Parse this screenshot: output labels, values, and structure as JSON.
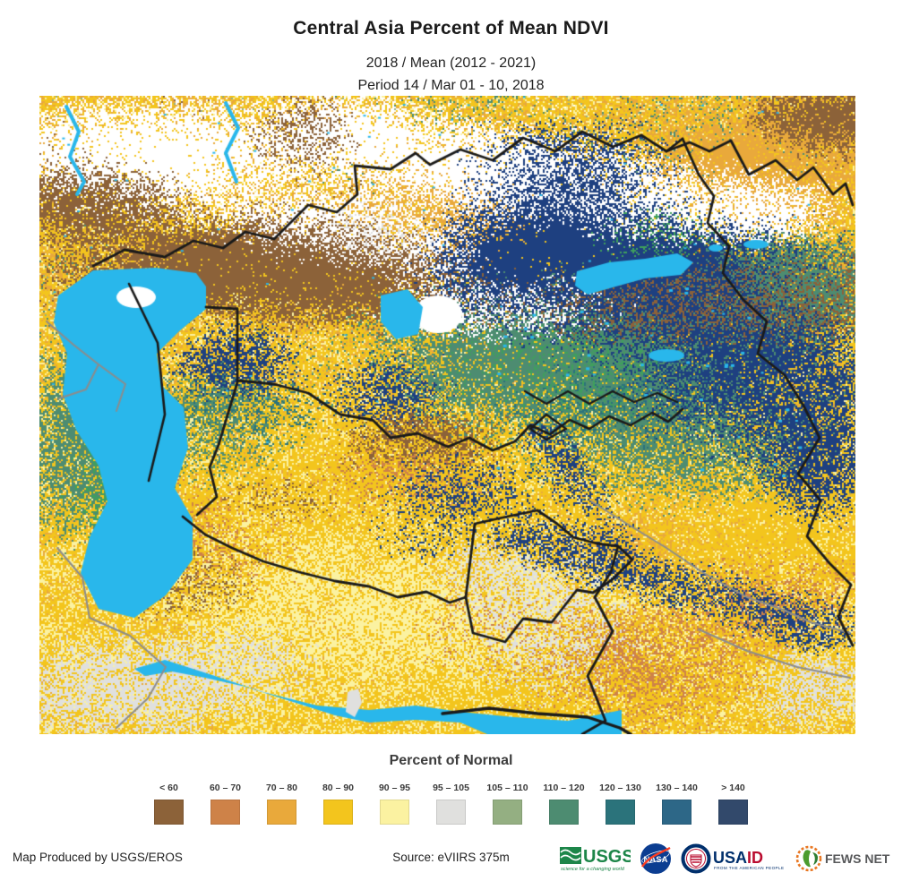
{
  "header": {
    "title": "Central Asia Percent of Mean NDVI",
    "subtitle1": "2018 / Mean (2012 - 2021)",
    "subtitle2": "Period 14 / Mar 01 - 10, 2018"
  },
  "legend": {
    "title": "Percent of Normal",
    "classes": [
      {
        "label": "< 60",
        "color": "#8C6239"
      },
      {
        "label": "60 – 70",
        "color": "#CE8248"
      },
      {
        "label": "70 – 80",
        "color": "#E9A93B"
      },
      {
        "label": "80 – 90",
        "color": "#F3C51D"
      },
      {
        "label": "90 – 95",
        "color": "#FBF2A1"
      },
      {
        "label": "95 – 105",
        "color": "#E0E0DE"
      },
      {
        "label": "105 – 110",
        "color": "#94AF82"
      },
      {
        "label": "110 – 120",
        "color": "#4D8C71"
      },
      {
        "label": "120 – 130",
        "color": "#2B737B"
      },
      {
        "label": "130 – 140",
        "color": "#2D6787"
      },
      {
        "label": "> 140",
        "color": "#32496B"
      }
    ]
  },
  "map": {
    "water_color": "#29B7EB",
    "border_color": "#1A1A1A",
    "secondary_border_color": "#8C8C8C",
    "no_data_color": "#FFFFFF",
    "extra_colors": {
      "navy": "#1E4080",
      "bright_green": "#3FA05C"
    }
  },
  "footer": {
    "produced_by": "Map Produced by USGS/EROS",
    "source": "Source: eVIIRS 375m"
  },
  "logos": {
    "usgs": {
      "name": "USGS",
      "tagline": "science for a changing world",
      "color": "#1D8649"
    },
    "nasa": {
      "name": "NASA",
      "blue": "#0B3D91",
      "red": "#FC3D21"
    },
    "usaid": {
      "name_blue": "USA",
      "name_red": "ID",
      "tagline": "FROM THE AMERICAN PEOPLE",
      "blue": "#002F6C",
      "red": "#BA0C2F"
    },
    "fewsnet": {
      "name": "FEWS NET",
      "orange": "#E87722",
      "green": "#4C9C2E",
      "text": "#58595B"
    }
  }
}
